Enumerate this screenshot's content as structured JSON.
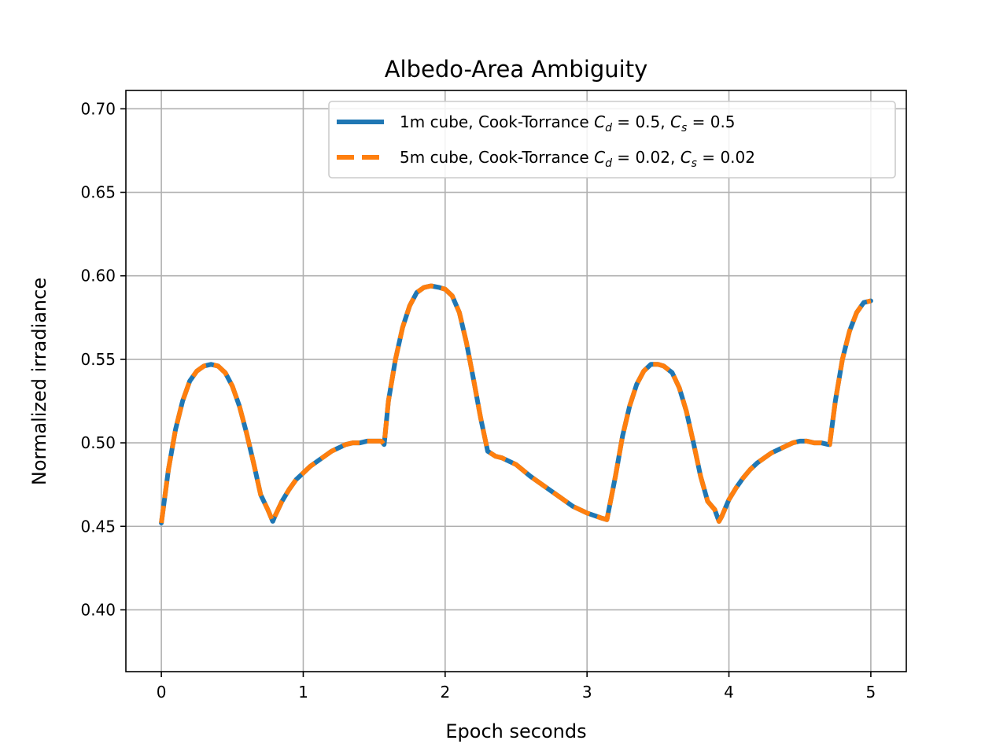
{
  "chart_data": {
    "type": "line",
    "title": "Albedo-Area Ambiguity",
    "xlabel": "Epoch seconds",
    "ylabel": "Normalized irradiance",
    "xlim": [
      -0.25,
      5.25
    ],
    "ylim": [
      0.363,
      0.711
    ],
    "x_ticks": [
      0,
      1,
      2,
      3,
      4,
      5
    ],
    "x_tick_labels": [
      "0",
      "1",
      "2",
      "3",
      "4",
      "5"
    ],
    "y_ticks": [
      0.4,
      0.45,
      0.5,
      0.55,
      0.6,
      0.65,
      0.7
    ],
    "y_tick_labels": [
      "0.40",
      "0.45",
      "0.50",
      "0.55",
      "0.60",
      "0.65",
      "0.70"
    ],
    "grid": true,
    "legend_position": "top-right",
    "x": [
      0.0,
      0.05,
      0.1,
      0.15,
      0.2,
      0.25,
      0.3,
      0.35,
      0.4,
      0.45,
      0.5,
      0.55,
      0.6,
      0.65,
      0.7,
      0.75,
      0.785,
      0.8,
      0.85,
      0.9,
      0.95,
      1.0,
      1.05,
      1.1,
      1.15,
      1.2,
      1.25,
      1.3,
      1.35,
      1.4,
      1.45,
      1.5,
      1.55,
      1.57,
      1.6,
      1.65,
      1.7,
      1.75,
      1.8,
      1.85,
      1.9,
      1.96,
      2.0,
      2.05,
      2.1,
      2.15,
      2.2,
      2.25,
      2.3,
      2.355,
      2.4,
      2.5,
      2.6,
      2.7,
      2.8,
      2.9,
      3.0,
      3.1,
      3.14,
      3.2,
      3.25,
      3.3,
      3.35,
      3.4,
      3.45,
      3.5,
      3.54,
      3.6,
      3.65,
      3.7,
      3.75,
      3.8,
      3.85,
      3.9,
      3.93,
      3.95,
      4.0,
      4.05,
      4.1,
      4.15,
      4.2,
      4.25,
      4.3,
      4.35,
      4.4,
      4.45,
      4.5,
      4.55,
      4.6,
      4.65,
      4.7,
      4.71,
      4.75,
      4.8,
      4.85,
      4.9,
      4.95,
      5.0
    ],
    "series": [
      {
        "name": "1m cube, Cook-Torrance C_d = 0.5, C_s = 0.5",
        "color": "#1f77b4",
        "style": "solid",
        "values": [
          0.452,
          0.484,
          0.508,
          0.525,
          0.537,
          0.543,
          0.546,
          0.547,
          0.546,
          0.542,
          0.534,
          0.522,
          0.506,
          0.488,
          0.469,
          0.46,
          0.453,
          0.456,
          0.465,
          0.472,
          0.478,
          0.482,
          0.486,
          0.489,
          0.492,
          0.495,
          0.497,
          0.499,
          0.5,
          0.5,
          0.501,
          0.501,
          0.501,
          0.499,
          0.525,
          0.55,
          0.569,
          0.582,
          0.59,
          0.593,
          0.594,
          0.593,
          0.592,
          0.588,
          0.578,
          0.56,
          0.538,
          0.515,
          0.495,
          0.492,
          0.491,
          0.487,
          0.48,
          0.474,
          0.468,
          0.462,
          0.458,
          0.455,
          0.454,
          0.48,
          0.504,
          0.522,
          0.535,
          0.543,
          0.547,
          0.547,
          0.546,
          0.542,
          0.533,
          0.519,
          0.5,
          0.48,
          0.465,
          0.46,
          0.453,
          0.456,
          0.466,
          0.473,
          0.479,
          0.484,
          0.488,
          0.491,
          0.494,
          0.496,
          0.498,
          0.5,
          0.501,
          0.501,
          0.5,
          0.5,
          0.499,
          0.499,
          0.525,
          0.55,
          0.567,
          0.578,
          0.584,
          0.585
        ]
      },
      {
        "name": "5m cube, Cook-Torrance C_d = 0.02, C_s = 0.02",
        "color": "#ff7f0e",
        "style": "dashed",
        "values": [
          0.452,
          0.484,
          0.508,
          0.525,
          0.537,
          0.543,
          0.546,
          0.547,
          0.546,
          0.542,
          0.534,
          0.522,
          0.506,
          0.488,
          0.469,
          0.46,
          0.453,
          0.456,
          0.465,
          0.472,
          0.478,
          0.482,
          0.486,
          0.489,
          0.492,
          0.495,
          0.497,
          0.499,
          0.5,
          0.5,
          0.501,
          0.501,
          0.501,
          0.499,
          0.525,
          0.55,
          0.569,
          0.582,
          0.59,
          0.593,
          0.594,
          0.593,
          0.592,
          0.588,
          0.578,
          0.56,
          0.538,
          0.515,
          0.495,
          0.492,
          0.491,
          0.487,
          0.48,
          0.474,
          0.468,
          0.462,
          0.458,
          0.455,
          0.454,
          0.48,
          0.504,
          0.522,
          0.535,
          0.543,
          0.547,
          0.547,
          0.546,
          0.542,
          0.533,
          0.519,
          0.5,
          0.48,
          0.465,
          0.46,
          0.453,
          0.456,
          0.466,
          0.473,
          0.479,
          0.484,
          0.488,
          0.491,
          0.494,
          0.496,
          0.498,
          0.5,
          0.501,
          0.501,
          0.5,
          0.5,
          0.499,
          0.499,
          0.525,
          0.55,
          0.567,
          0.578,
          0.584,
          0.585
        ]
      }
    ],
    "legend": [
      {
        "prefix": "1m cube, Cook-Torrance ",
        "cd_value": "0.5",
        "cs_value": "0.5"
      },
      {
        "prefix": "5m cube, Cook-Torrance ",
        "cd_value": "0.02",
        "cs_value": "0.02"
      }
    ],
    "legend_symbols": {
      "cd_base": "C",
      "cd_sub": "d",
      "cs_base": "C",
      "cs_sub": "s",
      "equals": " = ",
      "separator": ", "
    }
  }
}
